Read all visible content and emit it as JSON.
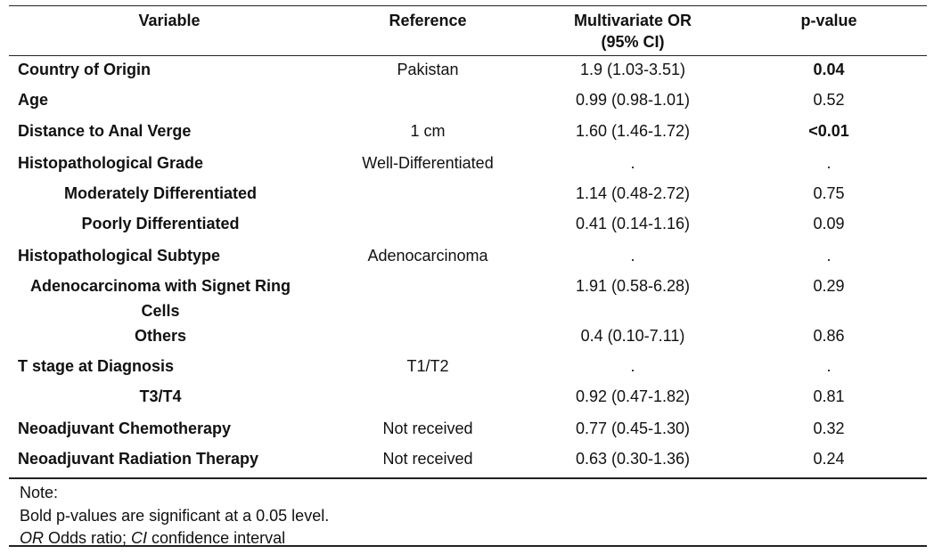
{
  "headers": {
    "variable": "Variable",
    "reference": "Reference",
    "or_line1": "Multivariate OR",
    "or_line2": "(95% CI)",
    "pvalue": "p-value"
  },
  "rows": [
    {
      "variable": "Country of Origin",
      "reference": "Pakistan",
      "or": "1.9 (1.03-3.51)",
      "p": "0.04",
      "p_bold": true
    },
    {
      "variable": "Age",
      "reference": "",
      "or": "0.99 (0.98-1.01)",
      "p": "0.52"
    },
    {
      "variable": "Distance to Anal Verge",
      "reference": "1 cm",
      "or": "1.60 (1.46-1.72)",
      "p": "<0.01",
      "p_bold": true
    },
    {
      "variable": "Histopathological Grade",
      "reference": "Well-Differentiated",
      "or": ".",
      "p": "."
    },
    {
      "variable": "Moderately Differentiated",
      "reference": "",
      "or": "1.14 (0.48-2.72)",
      "p": "0.75"
    },
    {
      "variable": "Poorly Differentiated",
      "reference": "",
      "or": "0.41 (0.14-1.16)",
      "p": "0.09"
    },
    {
      "variable": "Histopathological Subtype",
      "reference": "Adenocarcinoma",
      "or": ".",
      "p": "."
    },
    {
      "variable": "Adenocarcinoma with Signet Ring Cells",
      "reference": "",
      "or": "1.91 (0.58-6.28)",
      "p": "0.29"
    },
    {
      "variable": "Others",
      "reference": "",
      "or": "0.4 (0.10-7.11)",
      "p": "0.86"
    },
    {
      "variable": "T stage at Diagnosis",
      "reference": "T1/T2",
      "or": ".",
      "p": "."
    },
    {
      "variable": "T3/T4",
      "reference": "",
      "or": "0.92 (0.47-1.82)",
      "p": "0.81"
    },
    {
      "variable": "Neoadjuvant Chemotherapy",
      "reference": "Not received",
      "or": "0.77 (0.45-1.30)",
      "p": "0.32"
    },
    {
      "variable": "Neoadjuvant Radiation Therapy",
      "reference": "Not received",
      "or": "0.63 (0.30-1.36)",
      "p": "0.24"
    }
  ],
  "note": {
    "title": "Note:",
    "line1": "Bold p-values are significant at a 0.05 level.",
    "or_abbr": "OR",
    "or_text": " Odds ratio; ",
    "ci_abbr": "CI",
    "ci_text": " confidence interval"
  }
}
